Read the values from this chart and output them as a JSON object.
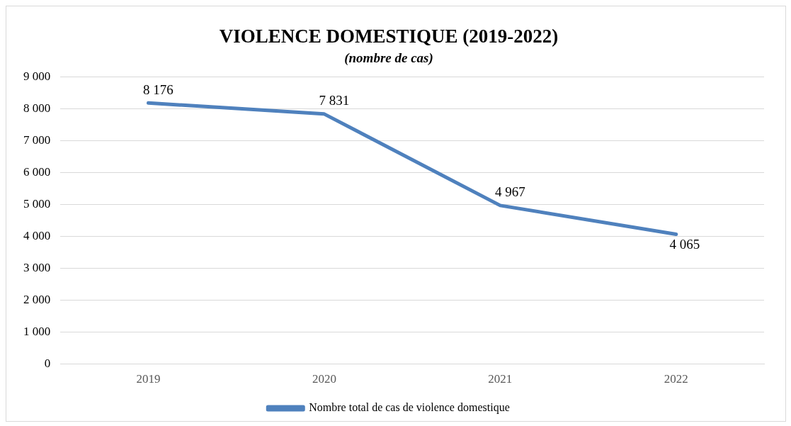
{
  "chart_data": {
    "type": "line",
    "title": "VIOLENCE DOMESTIQUE (2019-2022)",
    "subtitle": "(nombre de cas)",
    "categories": [
      "2019",
      "2020",
      "2021",
      "2022"
    ],
    "series": [
      {
        "name": "Nombre total de cas de violence domestique",
        "color": "#4f81bd",
        "values": [
          8176,
          7831,
          4967,
          4065
        ],
        "value_labels": [
          "8 176",
          "7 831",
          "4 967",
          "4 065"
        ]
      }
    ],
    "ylim": [
      0,
      9000
    ],
    "yticks": [
      {
        "value": 0,
        "label": "0"
      },
      {
        "value": 1000,
        "label": "1 000"
      },
      {
        "value": 2000,
        "label": "2 000"
      },
      {
        "value": 3000,
        "label": "3 000"
      },
      {
        "value": 4000,
        "label": "4 000"
      },
      {
        "value": 5000,
        "label": "5 000"
      },
      {
        "value": 6000,
        "label": "6 000"
      },
      {
        "value": 7000,
        "label": "7 000"
      },
      {
        "value": 8000,
        "label": "8 000"
      },
      {
        "value": 9000,
        "label": "9 000"
      }
    ],
    "grid": "y",
    "legend": "bottom",
    "marker": "none",
    "line_style": "solid"
  }
}
